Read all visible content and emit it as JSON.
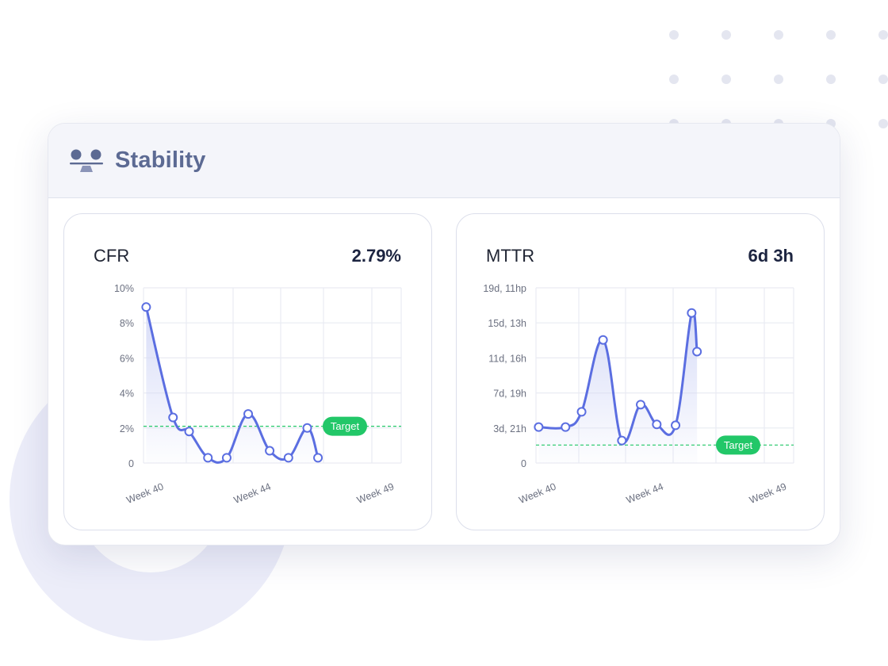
{
  "header": {
    "title": "Stability",
    "icon": "stability-icon"
  },
  "colors": {
    "line": "#5b6ee1",
    "fill": "#d5daf7",
    "target": "#22c768",
    "grid": "#e9ebf2",
    "tick_text": "#6b7080",
    "header_bg": "#f4f5fa",
    "title": "#5c6a93"
  },
  "cfr": {
    "label": "CFR",
    "value": "2.79%",
    "target_label": "Target",
    "chart_data": {
      "type": "line",
      "title": "CFR",
      "y_ticks": [
        "10%",
        "8%",
        "6%",
        "4%",
        "2%",
        "0"
      ],
      "x_tick_labels": [
        "Week 40",
        "Week 44",
        "Week 49"
      ],
      "ylim": [
        0,
        10
      ],
      "x_range": [
        39.9,
        49.5
      ],
      "target": 2.1,
      "series": [
        {
          "x": [
            40.0,
            41.0,
            41.6,
            42.3,
            43.0,
            43.8,
            44.6,
            45.3,
            46.0,
            46.4
          ],
          "y": [
            8.9,
            2.6,
            1.8,
            0.3,
            0.3,
            2.8,
            0.7,
            0.3,
            2.0,
            0.3
          ]
        }
      ]
    }
  },
  "mttr": {
    "label": "MTTR",
    "value": "6d 3h",
    "target_label": "Target",
    "chart_data": {
      "type": "line",
      "title": "MTTR",
      "y_ticks": [
        "19d, 11hp",
        "15d, 13h",
        "11d, 16h",
        "7d, 19h",
        "3d, 21h",
        "0"
      ],
      "x_tick_labels": [
        "Week 40",
        "Week 44",
        "Week 49"
      ],
      "ylim": [
        0,
        19.5
      ],
      "x_range": [
        39.9,
        49.5
      ],
      "target_days": 2.0,
      "series": [
        {
          "x": [
            40.0,
            41.0,
            41.6,
            42.4,
            43.1,
            43.8,
            44.4,
            45.1,
            45.7,
            45.9
          ],
          "y_days": [
            4.0,
            4.0,
            5.7,
            13.7,
            2.5,
            6.5,
            4.3,
            4.2,
            16.7,
            12.4
          ]
        }
      ]
    }
  }
}
